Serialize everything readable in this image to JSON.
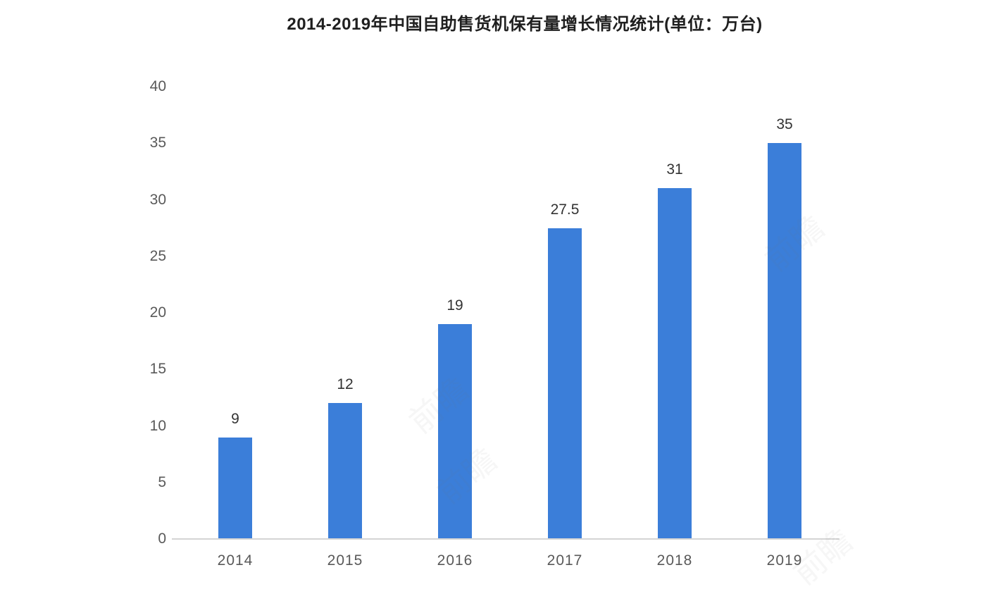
{
  "watermark_text": "前瞻",
  "colors": {
    "bar": "#3b7ed9",
    "axis_line": "#d4d4d4",
    "tick_label": "#595959",
    "value_label": "#333333",
    "title": "#1f1f1f",
    "background": "#ffffff"
  },
  "chart_data": {
    "type": "bar",
    "title": "2014-2019年中国自助售货机保有量增长情况统计(单位：万台)",
    "categories": [
      "2014",
      "2015",
      "2016",
      "2017",
      "2018",
      "2019"
    ],
    "values": [
      9,
      12,
      19,
      27.5,
      31,
      35
    ],
    "value_labels": [
      "9",
      "12",
      "19",
      "27.5",
      "31",
      "35"
    ],
    "unit": "万台",
    "xlabel": "",
    "ylabel": "",
    "ylim": [
      0,
      40
    ],
    "ytick_step": 5,
    "yticks": [
      0,
      5,
      10,
      15,
      20,
      25,
      30,
      35,
      40
    ],
    "grid": false,
    "legend": "none"
  }
}
